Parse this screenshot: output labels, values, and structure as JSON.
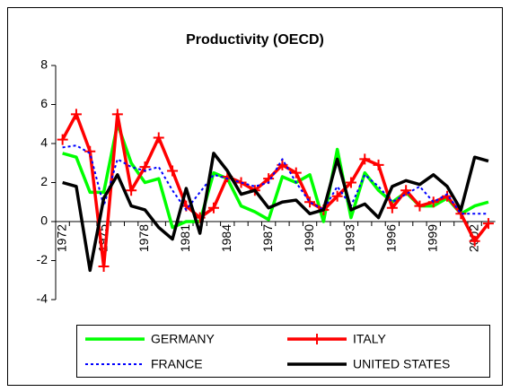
{
  "chart_data": {
    "type": "line",
    "title": "Productivity (OECD)",
    "categories": [
      "1972",
      null,
      null,
      "1975",
      null,
      null,
      "1978",
      null,
      null,
      "1981",
      null,
      null,
      "1984",
      null,
      null,
      "1987",
      null,
      null,
      "1990",
      null,
      null,
      "1993",
      null,
      null,
      "1996",
      null,
      null,
      "1999",
      null,
      null,
      "2002",
      null
    ],
    "ylim": [
      -4,
      8
    ],
    "yticks": [
      -4,
      -2,
      0,
      2,
      4,
      6,
      8
    ],
    "grid": false,
    "legend": "bottom",
    "series": [
      {
        "name": "GERMANY",
        "color": "#00ff00",
        "style": "solid",
        "values": [
          3.5,
          3.3,
          1.5,
          1.5,
          5.0,
          3.0,
          2.0,
          2.2,
          -0.3,
          0.0,
          0.0,
          2.5,
          2.2,
          0.8,
          0.5,
          0.1,
          2.3,
          2.0,
          2.4,
          0.0,
          3.7,
          0.2,
          2.5,
          1.6,
          1.0,
          1.5,
          0.8,
          0.8,
          1.2,
          0.4,
          0.8,
          1.0
        ]
      },
      {
        "name": "ITALY",
        "color": "#ff0000",
        "style": "solid",
        "marker": "+",
        "values": [
          4.2,
          5.5,
          3.6,
          -2.3,
          5.5,
          1.6,
          2.8,
          4.3,
          2.6,
          0.8,
          0.2,
          0.7,
          2.3,
          2.0,
          1.6,
          2.2,
          2.9,
          2.5,
          1.0,
          0.6,
          1.3,
          2.0,
          3.2,
          2.9,
          0.7,
          1.6,
          0.8,
          1.0,
          1.3,
          0.4,
          -1.0,
          -0.1
        ]
      },
      {
        "name": "FRANCE",
        "color": "#0000ff",
        "style": "dotted",
        "values": [
          3.8,
          3.9,
          3.5,
          0.8,
          3.2,
          2.8,
          2.6,
          2.8,
          1.6,
          0.6,
          1.5,
          2.4,
          2.2,
          2.0,
          1.8,
          2.0,
          3.2,
          2.0,
          1.0,
          0.6,
          1.8,
          0.8,
          2.4,
          1.8,
          1.0,
          1.4,
          1.8,
          1.0,
          1.4,
          0.4,
          0.4,
          0.4
        ]
      },
      {
        "name": "UNITED STATES",
        "color": "#000000",
        "style": "solid",
        "values": [
          2.0,
          1.8,
          -2.5,
          1.2,
          2.4,
          0.8,
          0.6,
          -0.3,
          -0.9,
          1.7,
          -0.6,
          3.5,
          2.6,
          1.4,
          1.6,
          0.7,
          1.0,
          1.1,
          0.4,
          0.6,
          3.2,
          0.6,
          0.9,
          0.2,
          1.8,
          2.1,
          1.9,
          2.4,
          1.8,
          0.6,
          3.3,
          3.1
        ]
      }
    ]
  }
}
